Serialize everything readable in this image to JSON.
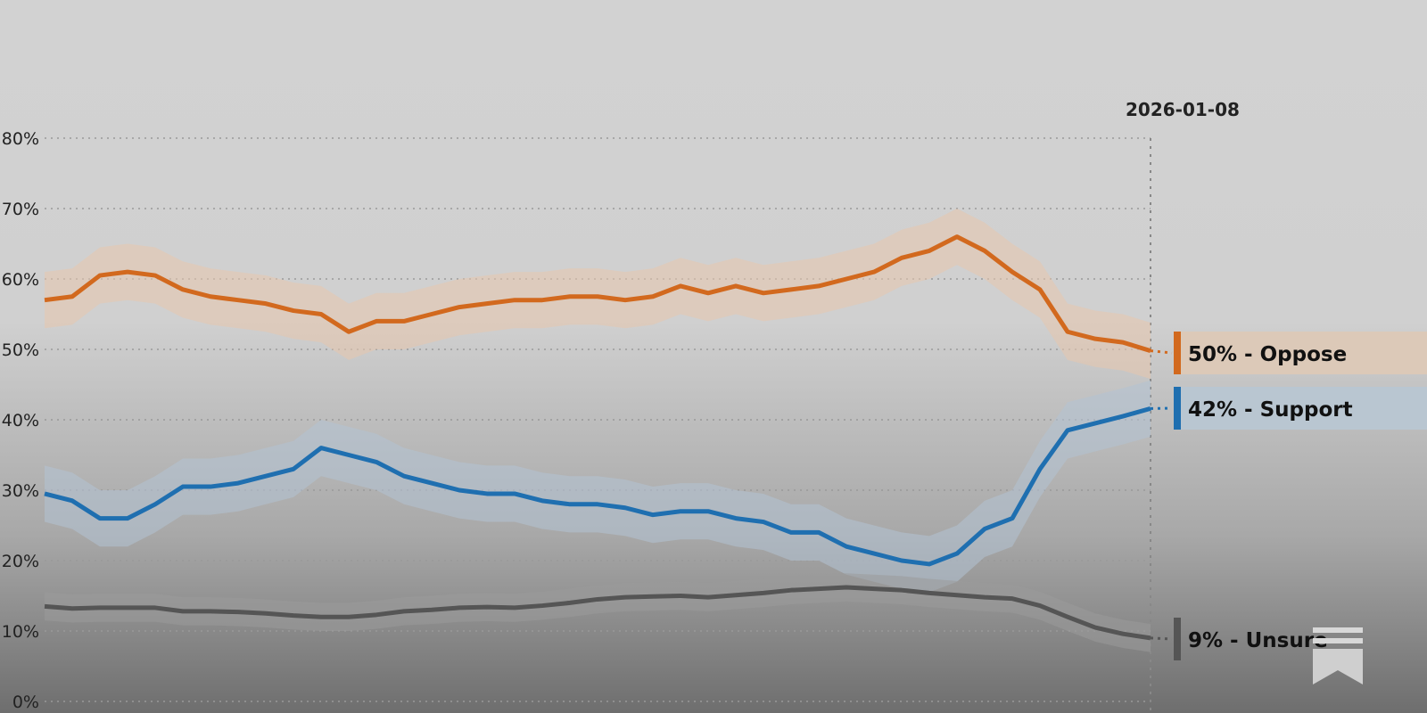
{
  "chart_data": {
    "type": "line",
    "title": "",
    "xlabel": "",
    "ylabel": "",
    "ylim": [
      0,
      80
    ],
    "y_ticks": [
      "0%",
      "10%",
      "20%",
      "30%",
      "40%",
      "50%",
      "60%",
      "70%",
      "80%"
    ],
    "grid": true,
    "end_date_label": "2026-01-08",
    "series": [
      {
        "name": "Oppose",
        "end_label": "50% - Oppose",
        "color": "#d2691e",
        "band_color": "#e7c7ad",
        "label_bg": "#dcc9b8",
        "values": [
          57,
          57.5,
          60.5,
          61,
          60.5,
          58.5,
          57.5,
          57,
          56.5,
          55.5,
          55,
          52.5,
          54,
          54,
          55,
          56,
          56.5,
          57,
          57,
          57.5,
          57.5,
          57,
          57.5,
          59,
          58,
          59,
          58,
          58.5,
          59,
          60,
          61,
          63,
          64,
          66,
          64,
          61,
          58.5,
          52.5,
          51.5,
          51,
          49.8
        ]
      },
      {
        "name": "Support",
        "end_label": "42% - Support",
        "color": "#1f6fb0",
        "band_color": "#b3c3d3",
        "label_bg": "#b9c6d1",
        "values": [
          29.5,
          28.5,
          26,
          26,
          28,
          30.5,
          30.5,
          31,
          32,
          33,
          36,
          35,
          34,
          32,
          31,
          30,
          29.5,
          29.5,
          28.5,
          28,
          28,
          27.5,
          26.5,
          27,
          27,
          26,
          25.5,
          24,
          24,
          22,
          21,
          20,
          19.5,
          21,
          24.5,
          26,
          33,
          38.5,
          39.5,
          40.5,
          41.6
        ]
      },
      {
        "name": "Unsure",
        "end_label": "9% - Unsure",
        "color": "#555555",
        "band_color": "#9a9a9a",
        "label_bg": "none",
        "values": [
          13.5,
          13.2,
          13.3,
          13.3,
          13.3,
          12.8,
          12.8,
          12.7,
          12.5,
          12.2,
          12,
          12,
          12.3,
          12.8,
          13,
          13.3,
          13.4,
          13.3,
          13.6,
          14,
          14.5,
          14.8,
          14.9,
          15,
          14.8,
          15.1,
          15.4,
          15.8,
          16,
          16.2,
          16,
          15.8,
          15.4,
          15.1,
          14.8,
          14.6,
          13.6,
          12,
          10.5,
          9.6,
          9
        ]
      }
    ]
  },
  "bookmark_icon": "bookmark-icon"
}
